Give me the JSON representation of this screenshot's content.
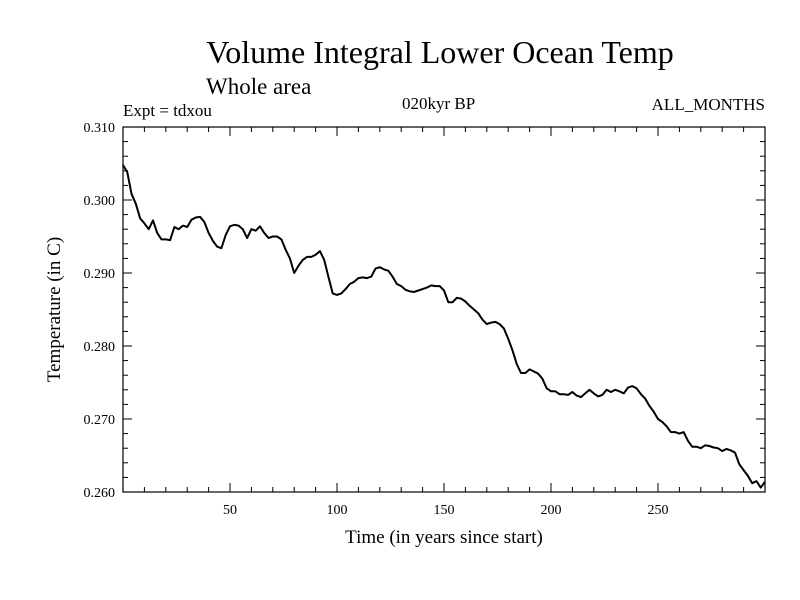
{
  "chart_data": {
    "type": "line",
    "title": "Volume Integral Lower Ocean Temp",
    "subtitle": "Whole area",
    "experiment_label": "Expt = tdxou",
    "period_label": "020kyr BP",
    "months_label": "ALL_MONTHS",
    "xlabel": "Time (in years since start)",
    "ylabel": "Temperature (in C)",
    "xlim": [
      0,
      300
    ],
    "ylim": [
      0.26,
      0.31
    ],
    "x_ticks": [
      50,
      100,
      150,
      200,
      250
    ],
    "x_tick_labels": [
      "50",
      "100",
      "150",
      "200",
      "250"
    ],
    "y_ticks": [
      0.26,
      0.27,
      0.28,
      0.29,
      0.3,
      0.31
    ],
    "y_tick_labels": [
      "0.260",
      "0.270",
      "0.280",
      "0.290",
      "0.300",
      "0.310"
    ],
    "grid": false,
    "line_color": "#000000",
    "series": [
      {
        "x": [
          0,
          2,
          4,
          6,
          8,
          10,
          12,
          14,
          16,
          18,
          20,
          22,
          24,
          26,
          28,
          30,
          32,
          34,
          36,
          38,
          40,
          42,
          44,
          46,
          48,
          50,
          52,
          54,
          56,
          58,
          60,
          62,
          64,
          66,
          68,
          70,
          72,
          74,
          76,
          78,
          80,
          82,
          84,
          86,
          88,
          90,
          92,
          94,
          96,
          98,
          100,
          102,
          104,
          106,
          108,
          110,
          112,
          114,
          116,
          118,
          120,
          122,
          124,
          126,
          128,
          130,
          132,
          134,
          136,
          138,
          140,
          142,
          144,
          146,
          148,
          150,
          152,
          154,
          156,
          158,
          160,
          162,
          164,
          166,
          168,
          170,
          172,
          174,
          176,
          178,
          180,
          182,
          184,
          186,
          188,
          190,
          192,
          194,
          196,
          198,
          200,
          202,
          204,
          206,
          208,
          210,
          212,
          214,
          216,
          218,
          220,
          222,
          224,
          226,
          228,
          230,
          232,
          234,
          236,
          238,
          240,
          242,
          244,
          246,
          248,
          250,
          252,
          254,
          256,
          258,
          260,
          262,
          264,
          266,
          268,
          270,
          272,
          274,
          276,
          278,
          280,
          282,
          284,
          286,
          288,
          290,
          292,
          294,
          296,
          298,
          300
        ],
        "y": [
          0.3048,
          0.3038,
          0.3008,
          0.2995,
          0.2975,
          0.2968,
          0.296,
          0.2972,
          0.2955,
          0.2946,
          0.2946,
          0.2945,
          0.2963,
          0.296,
          0.2965,
          0.2963,
          0.2973,
          0.2976,
          0.2977,
          0.297,
          0.2955,
          0.2944,
          0.2936,
          0.2934,
          0.2952,
          0.2964,
          0.2966,
          0.2965,
          0.296,
          0.2948,
          0.296,
          0.2958,
          0.2964,
          0.2955,
          0.2948,
          0.295,
          0.295,
          0.2946,
          0.2932,
          0.292,
          0.29,
          0.291,
          0.2918,
          0.2922,
          0.2922,
          0.2925,
          0.293,
          0.2918,
          0.2895,
          0.2872,
          0.287,
          0.2872,
          0.2878,
          0.2885,
          0.2888,
          0.2893,
          0.2894,
          0.2893,
          0.2895,
          0.2906,
          0.2908,
          0.2905,
          0.2903,
          0.2895,
          0.2885,
          0.2882,
          0.2877,
          0.2875,
          0.2874,
          0.2876,
          0.2878,
          0.288,
          0.2883,
          0.2882,
          0.2882,
          0.2876,
          0.286,
          0.286,
          0.2866,
          0.2865,
          0.2861,
          0.2855,
          0.285,
          0.2845,
          0.2836,
          0.283,
          0.2832,
          0.2833,
          0.283,
          0.2824,
          0.281,
          0.2794,
          0.2775,
          0.2763,
          0.2763,
          0.2768,
          0.2765,
          0.2762,
          0.2755,
          0.2742,
          0.2738,
          0.2738,
          0.2734,
          0.2734,
          0.2733,
          0.2737,
          0.2732,
          0.273,
          0.2735,
          0.274,
          0.2735,
          0.2731,
          0.2733,
          0.274,
          0.2737,
          0.274,
          0.2738,
          0.2735,
          0.2743,
          0.2745,
          0.2742,
          0.2734,
          0.2728,
          0.2718,
          0.271,
          0.27,
          0.2696,
          0.269,
          0.2682,
          0.2682,
          0.268,
          0.2682,
          0.267,
          0.2662,
          0.2662,
          0.266,
          0.2664,
          0.2663,
          0.2661,
          0.266,
          0.2656,
          0.2659,
          0.2657,
          0.2654,
          0.2638,
          0.263,
          0.2622,
          0.2612,
          0.2615,
          0.2606,
          0.2614
        ]
      }
    ]
  }
}
